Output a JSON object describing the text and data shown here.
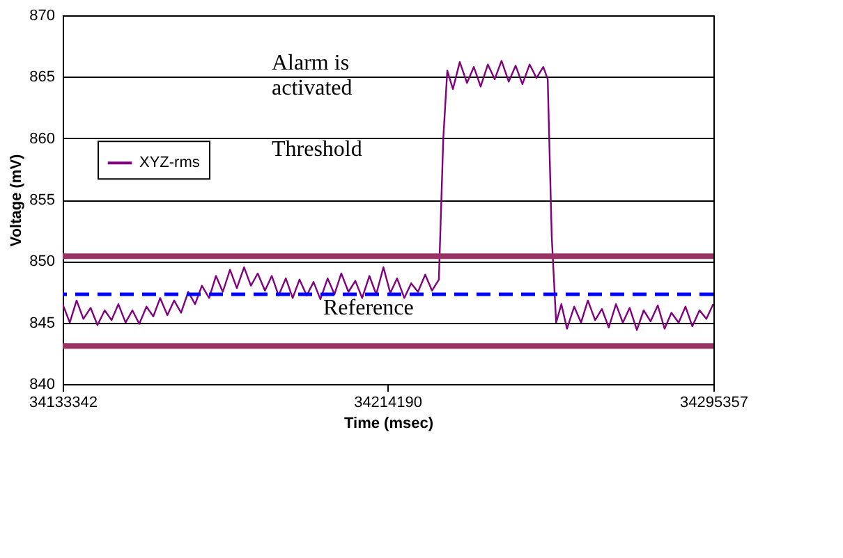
{
  "chart_data": {
    "type": "line",
    "xlabel": "Time (msec)",
    "ylabel": "Voltage (mV)",
    "xlim": [
      34133342,
      34295357
    ],
    "xticks": [
      34133342,
      34214190,
      34295357
    ],
    "ylim": [
      840,
      870
    ],
    "yticks": [
      840,
      845,
      850,
      855,
      860,
      865,
      870
    ],
    "grid": "y",
    "legend": "left",
    "marker": "none",
    "line_style": "solid",
    "x": [
      34133342,
      34135100,
      34136800,
      34138500,
      34140300,
      34142000,
      34143800,
      34145500,
      34147200,
      34149000,
      34150700,
      34152400,
      34154200,
      34155900,
      34157600,
      34159400,
      34161100,
      34162800,
      34164600,
      34166300,
      34168000,
      34169800,
      34171500,
      34173200,
      34175000,
      34176700,
      34178500,
      34180200,
      34181900,
      34183700,
      34185400,
      34187100,
      34188900,
      34190600,
      34192300,
      34194100,
      34195800,
      34197500,
      34199300,
      34201000,
      34202700,
      34204500,
      34206200,
      34207900,
      34209700,
      34211400,
      34213200,
      34214900,
      34216600,
      34218400,
      34220100,
      34221800,
      34223600,
      34225300,
      34227000,
      34228100,
      34229100,
      34230500,
      34232200,
      34234000,
      34235700,
      34237400,
      34239200,
      34240900,
      34242600,
      34244400,
      34246100,
      34247800,
      34249600,
      34251300,
      34253000,
      34254100,
      34255100,
      34256200,
      34257500,
      34258900,
      34260700,
      34262400,
      34264100,
      34265900,
      34267600,
      34269300,
      34271100,
      34272800,
      34274500,
      34276300,
      34278000,
      34279700,
      34281500,
      34283200,
      34284900,
      34286700,
      34288400,
      34290100,
      34291900,
      34293600,
      34295300
    ],
    "series": [
      {
        "name": "XYZ-rms",
        "color": "#800080",
        "values": [
          846.5,
          845,
          846.8,
          845.3,
          846.2,
          844.8,
          846,
          845.2,
          846.5,
          845,
          846,
          844.9,
          846.3,
          845.5,
          847,
          845.6,
          846.8,
          845.8,
          847.5,
          846.5,
          848,
          847,
          848.8,
          847.5,
          849.3,
          847.8,
          849.5,
          848,
          849,
          847.6,
          848.8,
          847.2,
          848.6,
          847,
          848.5,
          847.2,
          848.3,
          846.9,
          848.6,
          847.3,
          849,
          847.5,
          848.4,
          847,
          848.8,
          847.3,
          849.5,
          847.4,
          848.6,
          847,
          848.2,
          847.5,
          848.9,
          847.6,
          848.5,
          860,
          865.5,
          864,
          866.2,
          864.5,
          865.8,
          864.2,
          866,
          864.8,
          866.3,
          864.6,
          865.9,
          864.4,
          866,
          864.9,
          865.8,
          864.8,
          852,
          845,
          846.5,
          844.5,
          846.3,
          845,
          846.8,
          845.2,
          846.1,
          844.6,
          846.5,
          845,
          846.2,
          844.4,
          846,
          845.1,
          846.4,
          844.5,
          845.8,
          845,
          846.3,
          844.7,
          846,
          845.3,
          846.5
        ]
      }
    ],
    "ref_lines": [
      {
        "axis": "y",
        "value": 850.4,
        "color": "#993366",
        "line_style": "solid"
      },
      {
        "axis": "y",
        "value": 843.1,
        "color": "#993366",
        "line_style": "solid"
      },
      {
        "axis": "y",
        "value": 847.3,
        "color": "#0000ff",
        "line_style": "dashed"
      }
    ],
    "annotations": [
      "Alarm is\nactivated",
      "Threshold",
      "Reference"
    ]
  }
}
